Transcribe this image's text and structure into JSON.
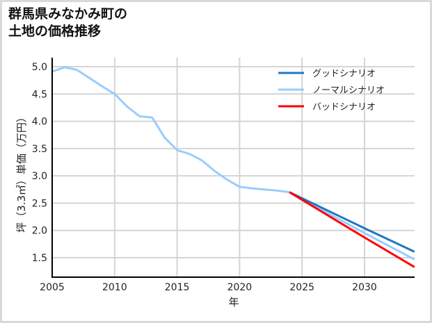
{
  "title_lines": [
    "群馬県みなかみ町の",
    "土地の価格推移"
  ],
  "chart_data": {
    "type": "line",
    "title": "群馬県みなかみ町の土地の価格推移",
    "xlabel": "年",
    "ylabel": "坪（3.3㎡）単価（万円）",
    "xlim": [
      2005,
      2034
    ],
    "ylim": [
      1.13,
      5.17
    ],
    "grid": true,
    "legend_position": "upper right",
    "x_ticks": [
      2005,
      2010,
      2015,
      2020,
      2025,
      2030
    ],
    "y_ticks": [
      1.5,
      2.0,
      2.5,
      3.0,
      3.5,
      4.0,
      4.5,
      5.0
    ],
    "x_tick_labels": [
      "2005",
      "2010",
      "2015",
      "2020",
      "2025",
      "2030"
    ],
    "y_tick_labels": [
      "1.5",
      "2.0",
      "2.5",
      "3.0",
      "3.5",
      "4.0",
      "4.5",
      "5.0"
    ],
    "series": [
      {
        "name": "グッドシナリオ",
        "color": "#1f77c4",
        "x": [
          2024,
          2030,
          2034
        ],
        "values": [
          2.7,
          2.04,
          1.61
        ]
      },
      {
        "name": "ノーマルシナリオ",
        "color": "#99ccff",
        "x": [
          2005,
          2006,
          2007,
          2008,
          2009,
          2010,
          2011,
          2012,
          2013,
          2014,
          2015,
          2016,
          2017,
          2018,
          2019,
          2020,
          2021,
          2022,
          2023,
          2024,
          2030,
          2034
        ],
        "values": [
          4.91,
          4.99,
          4.94,
          4.79,
          4.64,
          4.5,
          4.27,
          4.09,
          4.07,
          3.7,
          3.47,
          3.4,
          3.28,
          3.09,
          2.93,
          2.8,
          2.77,
          2.75,
          2.73,
          2.7,
          1.95,
          1.47
        ]
      },
      {
        "name": "バッドシナリオ",
        "color": "#ff0000",
        "x": [
          2024,
          2030,
          2034
        ],
        "values": [
          2.7,
          1.87,
          1.33
        ]
      }
    ]
  },
  "legend": [
    {
      "label": "グッドシナリオ",
      "color": "#1f77c4"
    },
    {
      "label": "ノーマルシナリオ",
      "color": "#99ccff"
    },
    {
      "label": "バッドシナリオ",
      "color": "#ff0000"
    }
  ]
}
